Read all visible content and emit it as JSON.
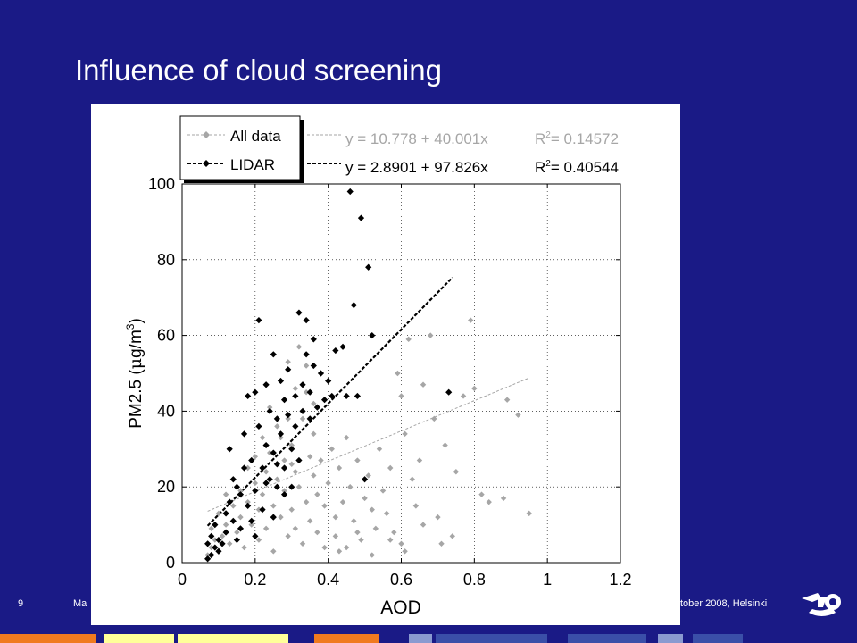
{
  "slide": {
    "title": "Influence of cloud screening",
    "page_number": "9",
    "footer_left": "Ma",
    "footer_right": "tober 2008, Helsinki"
  },
  "colors": {
    "background": "#1a1a86",
    "all_data": "#a6a6a6",
    "lidar": "#000000"
  },
  "chart_data": {
    "type": "scatter",
    "xlabel": "AOD",
    "ylabel_main": "PM2.5 (",
    "ylabel_mu": "μ",
    "ylabel_unit": "g/m",
    "ylabel_exp": "3",
    "ylabel_close": ")",
    "xlim": [
      0,
      1.2
    ],
    "ylim": [
      0,
      100
    ],
    "xticks": [
      "0",
      "0.2",
      "0.4",
      "0.6",
      "0.8",
      "1",
      "1.2"
    ],
    "yticks": [
      "0",
      "20",
      "40",
      "60",
      "80",
      "100"
    ],
    "grid": true,
    "legend_position": "top-left",
    "series": [
      {
        "name": "All data",
        "fit_text": "y = 10.778 + 40.001x",
        "r2_label": "R",
        "r2_value": "= 0.14572",
        "fit": {
          "intercept": 10.778,
          "slope": 40.001,
          "x_range": [
            0.07,
            0.95
          ]
        },
        "points": [
          [
            0.07,
            2
          ],
          [
            0.08,
            4
          ],
          [
            0.08,
            9
          ],
          [
            0.09,
            6
          ],
          [
            0.1,
            13
          ],
          [
            0.1,
            3
          ],
          [
            0.11,
            7
          ],
          [
            0.12,
            18
          ],
          [
            0.12,
            10
          ],
          [
            0.13,
            5
          ],
          [
            0.14,
            22
          ],
          [
            0.14,
            15
          ],
          [
            0.15,
            8
          ],
          [
            0.16,
            19
          ],
          [
            0.16,
            12
          ],
          [
            0.17,
            4
          ],
          [
            0.18,
            25
          ],
          [
            0.18,
            16
          ],
          [
            0.19,
            10
          ],
          [
            0.2,
            28
          ],
          [
            0.2,
            21
          ],
          [
            0.21,
            14
          ],
          [
            0.21,
            6
          ],
          [
            0.22,
            33
          ],
          [
            0.22,
            18
          ],
          [
            0.23,
            24
          ],
          [
            0.23,
            9
          ],
          [
            0.24,
            41
          ],
          [
            0.24,
            29
          ],
          [
            0.25,
            15
          ],
          [
            0.25,
            3
          ],
          [
            0.26,
            36
          ],
          [
            0.26,
            22
          ],
          [
            0.27,
            12
          ],
          [
            0.27,
            48
          ],
          [
            0.28,
            27
          ],
          [
            0.28,
            19
          ],
          [
            0.29,
            7
          ],
          [
            0.29,
            53
          ],
          [
            0.3,
            31
          ],
          [
            0.3,
            14
          ],
          [
            0.31,
            24
          ],
          [
            0.31,
            9
          ],
          [
            0.32,
            57
          ],
          [
            0.32,
            20
          ],
          [
            0.33,
            38
          ],
          [
            0.33,
            5
          ],
          [
            0.34,
            45
          ],
          [
            0.34,
            16
          ],
          [
            0.35,
            28
          ],
          [
            0.35,
            11
          ],
          [
            0.36,
            23
          ],
          [
            0.36,
            34
          ],
          [
            0.37,
            18
          ],
          [
            0.37,
            8
          ],
          [
            0.38,
            27
          ],
          [
            0.39,
            15
          ],
          [
            0.39,
            4
          ],
          [
            0.4,
            21
          ],
          [
            0.41,
            30
          ],
          [
            0.42,
            12
          ],
          [
            0.42,
            7
          ],
          [
            0.43,
            25
          ],
          [
            0.44,
            16
          ],
          [
            0.45,
            33
          ],
          [
            0.45,
            4
          ],
          [
            0.46,
            20
          ],
          [
            0.47,
            11
          ],
          [
            0.48,
            27
          ],
          [
            0.49,
            6
          ],
          [
            0.5,
            17
          ],
          [
            0.51,
            23
          ],
          [
            0.52,
            14
          ],
          [
            0.53,
            9
          ],
          [
            0.54,
            30
          ],
          [
            0.55,
            19
          ],
          [
            0.56,
            13
          ],
          [
            0.57,
            25
          ],
          [
            0.58,
            8
          ],
          [
            0.59,
            50
          ],
          [
            0.6,
            44
          ],
          [
            0.6,
            5
          ],
          [
            0.61,
            34
          ],
          [
            0.62,
            59
          ],
          [
            0.63,
            22
          ],
          [
            0.64,
            15
          ],
          [
            0.65,
            27
          ],
          [
            0.66,
            47
          ],
          [
            0.68,
            60
          ],
          [
            0.69,
            38
          ],
          [
            0.7,
            12
          ],
          [
            0.71,
            5
          ],
          [
            0.72,
            31
          ],
          [
            0.74,
            7
          ],
          [
            0.75,
            24
          ],
          [
            0.77,
            44
          ],
          [
            0.79,
            64
          ],
          [
            0.8,
            46
          ],
          [
            0.82,
            18
          ],
          [
            0.84,
            16
          ],
          [
            0.88,
            17
          ],
          [
            0.89,
            43
          ],
          [
            0.92,
            39
          ],
          [
            0.95,
            13
          ],
          [
            0.43,
            3
          ],
          [
            0.48,
            8
          ],
          [
            0.52,
            2
          ],
          [
            0.57,
            6
          ],
          [
            0.61,
            3
          ],
          [
            0.66,
            10
          ],
          [
            0.29,
            38
          ],
          [
            0.31,
            46
          ],
          [
            0.34,
            52
          ],
          [
            0.27,
            33
          ],
          [
            0.36,
            42
          ],
          [
            0.3,
            26
          ]
        ]
      },
      {
        "name": "LIDAR",
        "fit_text": "y = 2.8901 + 97.826x",
        "r2_label": "R",
        "r2_value": "= 0.40544",
        "fit": {
          "intercept": 2.8901,
          "slope": 97.826,
          "x_range": [
            0.07,
            0.74
          ]
        },
        "points": [
          [
            0.07,
            1
          ],
          [
            0.07,
            5
          ],
          [
            0.08,
            2
          ],
          [
            0.08,
            7
          ],
          [
            0.09,
            4
          ],
          [
            0.09,
            10
          ],
          [
            0.1,
            3
          ],
          [
            0.1,
            6
          ],
          [
            0.11,
            5
          ],
          [
            0.12,
            13
          ],
          [
            0.12,
            8
          ],
          [
            0.13,
            30
          ],
          [
            0.13,
            16
          ],
          [
            0.14,
            22
          ],
          [
            0.14,
            11
          ],
          [
            0.15,
            20
          ],
          [
            0.15,
            6
          ],
          [
            0.16,
            18
          ],
          [
            0.16,
            9
          ],
          [
            0.17,
            34
          ],
          [
            0.17,
            25
          ],
          [
            0.18,
            44
          ],
          [
            0.18,
            15
          ],
          [
            0.19,
            27
          ],
          [
            0.19,
            11
          ],
          [
            0.2,
            45
          ],
          [
            0.2,
            19
          ],
          [
            0.2,
            7
          ],
          [
            0.21,
            64
          ],
          [
            0.21,
            36
          ],
          [
            0.22,
            25
          ],
          [
            0.22,
            14
          ],
          [
            0.23,
            47
          ],
          [
            0.23,
            31
          ],
          [
            0.24,
            40
          ],
          [
            0.24,
            22
          ],
          [
            0.25,
            55
          ],
          [
            0.25,
            29
          ],
          [
            0.25,
            12
          ],
          [
            0.26,
            38
          ],
          [
            0.26,
            20
          ],
          [
            0.27,
            48
          ],
          [
            0.27,
            34
          ],
          [
            0.28,
            43
          ],
          [
            0.28,
            25
          ],
          [
            0.29,
            51
          ],
          [
            0.29,
            39
          ],
          [
            0.3,
            30
          ],
          [
            0.3,
            20
          ],
          [
            0.31,
            44
          ],
          [
            0.31,
            36
          ],
          [
            0.32,
            66
          ],
          [
            0.32,
            27
          ],
          [
            0.33,
            47
          ],
          [
            0.33,
            40
          ],
          [
            0.34,
            64
          ],
          [
            0.34,
            55
          ],
          [
            0.35,
            38
          ],
          [
            0.35,
            45
          ],
          [
            0.36,
            52
          ],
          [
            0.36,
            59
          ],
          [
            0.37,
            41
          ],
          [
            0.38,
            50
          ],
          [
            0.39,
            43
          ],
          [
            0.4,
            48
          ],
          [
            0.41,
            44
          ],
          [
            0.42,
            56
          ],
          [
            0.44,
            57
          ],
          [
            0.45,
            44
          ],
          [
            0.46,
            98
          ],
          [
            0.47,
            68
          ],
          [
            0.48,
            44
          ],
          [
            0.49,
            91
          ],
          [
            0.5,
            22
          ],
          [
            0.51,
            78
          ],
          [
            0.73,
            45
          ],
          [
            0.52,
            60
          ],
          [
            0.26,
            26
          ],
          [
            0.28,
            18
          ],
          [
            0.23,
            21
          ]
        ]
      }
    ]
  }
}
